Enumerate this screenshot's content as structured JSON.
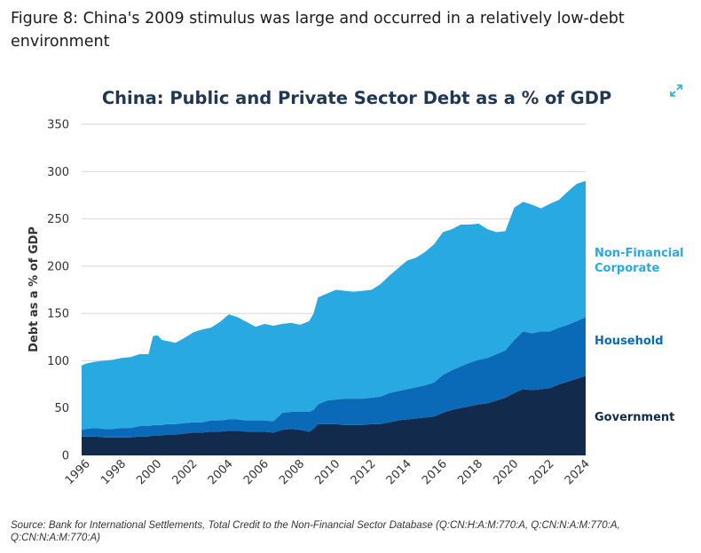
{
  "figure_title": "Figure 8: China's 2009 stimulus was large and occurred in a relatively low-debt environment",
  "source": "Source: Bank for International Settlements, Total Credit to the Non-Financial Sector Database (Q:CN:H:A:M:770:A, Q:CN:N:A:M:770:A, Q:CN:N:A:M:770:A)",
  "icons": {
    "expand": "expand-icon"
  },
  "chart_data": {
    "type": "area",
    "stacked": true,
    "title": "China: Public and Private Sector Debt as a % of GDP",
    "xlabel": "",
    "ylabel": "Debt as a % of GDP",
    "ylim": [
      0,
      350
    ],
    "yticks": [
      0,
      50,
      100,
      150,
      200,
      250,
      300,
      350
    ],
    "xlim": [
      1995.75,
      2024
    ],
    "xticks": [
      "1996",
      "1998",
      "2000",
      "2002",
      "2004",
      "2006",
      "2008",
      "2010",
      "2012",
      "2014",
      "2016",
      "2018",
      "2020",
      "2022",
      "2024"
    ],
    "grid": "horizontal",
    "x": [
      1995.75,
      1996,
      1996.5,
      1997,
      1997.5,
      1998,
      1998.5,
      1999,
      1999.25,
      1999.5,
      1999.75,
      2000,
      2000.25,
      2000.5,
      2001,
      2001.5,
      2002,
      2002.5,
      2003,
      2003.5,
      2004,
      2004.5,
      2005,
      2005.5,
      2006,
      2006.5,
      2007,
      2007.5,
      2008,
      2008.5,
      2008.75,
      2009,
      2009.5,
      2010,
      2010.5,
      2011,
      2011.5,
      2012,
      2012.5,
      2013,
      2013.5,
      2014,
      2014.5,
      2015,
      2015.5,
      2016,
      2016.5,
      2017,
      2017.5,
      2018,
      2018.5,
      2019,
      2019.5,
      2020,
      2020.5,
      2021,
      2021.5,
      2022,
      2022.5,
      2023,
      2023.5,
      2024
    ],
    "series": [
      {
        "name": "Government",
        "color": "#122a4b",
        "values": [
          20,
          20,
          20,
          19,
          19,
          19,
          19,
          20,
          20,
          20,
          21,
          21,
          21,
          22,
          22,
          23,
          24,
          24,
          25,
          25,
          26,
          26,
          25,
          25,
          25,
          24,
          27,
          28,
          27,
          25,
          28,
          33,
          33,
          33,
          32,
          32,
          32,
          33,
          33,
          35,
          37,
          38,
          39,
          40,
          41,
          45,
          48,
          50,
          52,
          54,
          55,
          58,
          61,
          66,
          70,
          69,
          70,
          71,
          75,
          78,
          81,
          84
        ]
      },
      {
        "name": "Household",
        "color": "#0a6ab7",
        "values": [
          7,
          8,
          9,
          9,
          9,
          10,
          10,
          11,
          11,
          11,
          11,
          11,
          11,
          11,
          11,
          11,
          11,
          11,
          12,
          12,
          12,
          12,
          12,
          12,
          12,
          12,
          18,
          18,
          19,
          21,
          20,
          21,
          25,
          26,
          28,
          28,
          28,
          28,
          29,
          31,
          31,
          32,
          33,
          34,
          36,
          40,
          42,
          44,
          46,
          47,
          48,
          49,
          50,
          56,
          61,
          60,
          61,
          60,
          60,
          60,
          61,
          62
        ]
      },
      {
        "name": "Non-Financial Corporate",
        "color": "#29a9e1",
        "values": [
          68,
          69,
          70,
          72,
          73,
          74,
          75,
          76,
          76,
          76,
          94,
          95,
          90,
          88,
          86,
          90,
          95,
          98,
          98,
          104,
          111,
          108,
          104,
          99,
          102,
          101,
          94,
          94,
          92,
          96,
          102,
          113,
          113,
          116,
          114,
          113,
          114,
          114,
          119,
          124,
          130,
          136,
          137,
          141,
          146,
          151,
          149,
          150,
          146,
          144,
          136,
          129,
          126,
          140,
          137,
          136,
          130,
          135,
          135,
          141,
          145,
          144
        ]
      }
    ],
    "series_labels": [
      {
        "lines": [
          "Non-Financial",
          "Corporate"
        ],
        "color": "#29a9e1"
      },
      {
        "lines": [
          "Household"
        ],
        "color": "#0a6ab7"
      },
      {
        "lines": [
          "Government"
        ],
        "color": "#122a4b"
      }
    ]
  }
}
